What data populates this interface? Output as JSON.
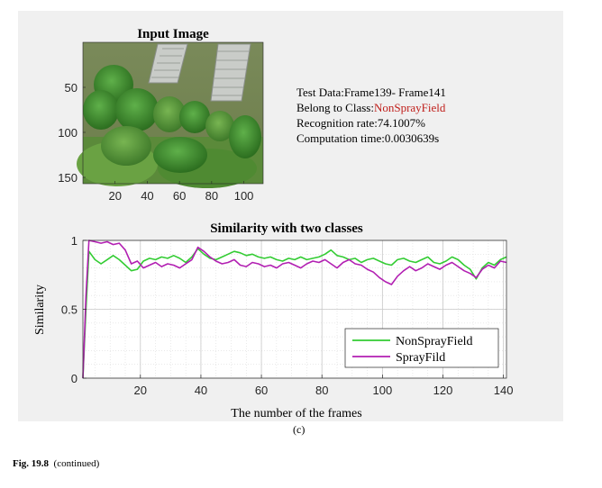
{
  "input_image": {
    "title": "Input Image",
    "x_ticks": [
      20,
      40,
      60,
      80,
      100
    ],
    "y_ticks": [
      50,
      100,
      150
    ]
  },
  "info": {
    "test_data": "Test Data:Frame139- Frame141",
    "class_prefix": "Belong to Class:",
    "class_name": "NonSprayField",
    "class_color": "#c0201c",
    "recognition": "Recognition rate:74.1007%",
    "computation": "Computation time:0.0030639s"
  },
  "panel_label": "(c)",
  "caption": {
    "label": "Fig. 19.8",
    "text": "(continued)"
  },
  "chart_data": {
    "type": "line",
    "title": "Similarity with two classes",
    "xlabel": "The number of the frames",
    "ylabel": "Similarity",
    "xlim": [
      1,
      141
    ],
    "ylim": [
      0,
      1
    ],
    "x_ticks": [
      20,
      40,
      60,
      80,
      100,
      120,
      140
    ],
    "y_ticks": [
      0,
      0.5,
      1
    ],
    "grid": true,
    "legend_position": "bottom-right",
    "series": [
      {
        "name": "NonSprayField",
        "color": "#33cc33",
        "points": [
          [
            1,
            0.0
          ],
          [
            2,
            0.5
          ],
          [
            3,
            0.92
          ],
          [
            5,
            0.86
          ],
          [
            7,
            0.83
          ],
          [
            9,
            0.86
          ],
          [
            11,
            0.89
          ],
          [
            13,
            0.86
          ],
          [
            15,
            0.82
          ],
          [
            17,
            0.78
          ],
          [
            19,
            0.79
          ],
          [
            21,
            0.85
          ],
          [
            23,
            0.87
          ],
          [
            25,
            0.86
          ],
          [
            27,
            0.88
          ],
          [
            29,
            0.87
          ],
          [
            31,
            0.89
          ],
          [
            33,
            0.87
          ],
          [
            35,
            0.84
          ],
          [
            37,
            0.88
          ],
          [
            39,
            0.94
          ],
          [
            41,
            0.9
          ],
          [
            43,
            0.87
          ],
          [
            45,
            0.86
          ],
          [
            47,
            0.88
          ],
          [
            49,
            0.9
          ],
          [
            51,
            0.92
          ],
          [
            53,
            0.91
          ],
          [
            55,
            0.89
          ],
          [
            57,
            0.9
          ],
          [
            59,
            0.88
          ],
          [
            61,
            0.87
          ],
          [
            63,
            0.88
          ],
          [
            65,
            0.86
          ],
          [
            67,
            0.85
          ],
          [
            69,
            0.87
          ],
          [
            71,
            0.86
          ],
          [
            73,
            0.88
          ],
          [
            75,
            0.86
          ],
          [
            77,
            0.87
          ],
          [
            79,
            0.88
          ],
          [
            81,
            0.9
          ],
          [
            83,
            0.93
          ],
          [
            85,
            0.89
          ],
          [
            87,
            0.88
          ],
          [
            89,
            0.86
          ],
          [
            91,
            0.87
          ],
          [
            93,
            0.84
          ],
          [
            95,
            0.86
          ],
          [
            97,
            0.87
          ],
          [
            99,
            0.85
          ],
          [
            101,
            0.83
          ],
          [
            103,
            0.82
          ],
          [
            105,
            0.86
          ],
          [
            107,
            0.87
          ],
          [
            109,
            0.85
          ],
          [
            111,
            0.84
          ],
          [
            113,
            0.86
          ],
          [
            115,
            0.88
          ],
          [
            117,
            0.84
          ],
          [
            119,
            0.83
          ],
          [
            121,
            0.85
          ],
          [
            123,
            0.88
          ],
          [
            125,
            0.86
          ],
          [
            127,
            0.82
          ],
          [
            129,
            0.79
          ],
          [
            131,
            0.72
          ],
          [
            133,
            0.8
          ],
          [
            135,
            0.84
          ],
          [
            137,
            0.82
          ],
          [
            139,
            0.86
          ],
          [
            141,
            0.88
          ]
        ]
      },
      {
        "name": "SprayFild",
        "color": "#b21fb2",
        "points": [
          [
            1,
            0.0
          ],
          [
            2,
            0.6
          ],
          [
            3,
            1.0
          ],
          [
            5,
            0.99
          ],
          [
            7,
            0.98
          ],
          [
            9,
            0.99
          ],
          [
            11,
            0.97
          ],
          [
            13,
            0.98
          ],
          [
            15,
            0.93
          ],
          [
            17,
            0.83
          ],
          [
            19,
            0.85
          ],
          [
            21,
            0.8
          ],
          [
            23,
            0.82
          ],
          [
            25,
            0.84
          ],
          [
            27,
            0.81
          ],
          [
            29,
            0.83
          ],
          [
            31,
            0.82
          ],
          [
            33,
            0.8
          ],
          [
            35,
            0.83
          ],
          [
            37,
            0.86
          ],
          [
            39,
            0.95
          ],
          [
            41,
            0.92
          ],
          [
            43,
            0.88
          ],
          [
            45,
            0.85
          ],
          [
            47,
            0.83
          ],
          [
            49,
            0.84
          ],
          [
            51,
            0.86
          ],
          [
            53,
            0.82
          ],
          [
            55,
            0.81
          ],
          [
            57,
            0.84
          ],
          [
            59,
            0.83
          ],
          [
            61,
            0.81
          ],
          [
            63,
            0.82
          ],
          [
            65,
            0.8
          ],
          [
            67,
            0.83
          ],
          [
            69,
            0.84
          ],
          [
            71,
            0.82
          ],
          [
            73,
            0.8
          ],
          [
            75,
            0.83
          ],
          [
            77,
            0.85
          ],
          [
            79,
            0.84
          ],
          [
            81,
            0.86
          ],
          [
            83,
            0.83
          ],
          [
            85,
            0.8
          ],
          [
            87,
            0.84
          ],
          [
            89,
            0.86
          ],
          [
            91,
            0.83
          ],
          [
            93,
            0.82
          ],
          [
            95,
            0.79
          ],
          [
            97,
            0.77
          ],
          [
            99,
            0.73
          ],
          [
            101,
            0.7
          ],
          [
            103,
            0.68
          ],
          [
            105,
            0.74
          ],
          [
            107,
            0.78
          ],
          [
            109,
            0.81
          ],
          [
            111,
            0.78
          ],
          [
            113,
            0.8
          ],
          [
            115,
            0.83
          ],
          [
            117,
            0.81
          ],
          [
            119,
            0.79
          ],
          [
            121,
            0.82
          ],
          [
            123,
            0.84
          ],
          [
            125,
            0.81
          ],
          [
            127,
            0.78
          ],
          [
            129,
            0.76
          ],
          [
            131,
            0.73
          ],
          [
            133,
            0.79
          ],
          [
            135,
            0.82
          ],
          [
            137,
            0.8
          ],
          [
            139,
            0.85
          ],
          [
            141,
            0.84
          ]
        ]
      }
    ]
  }
}
